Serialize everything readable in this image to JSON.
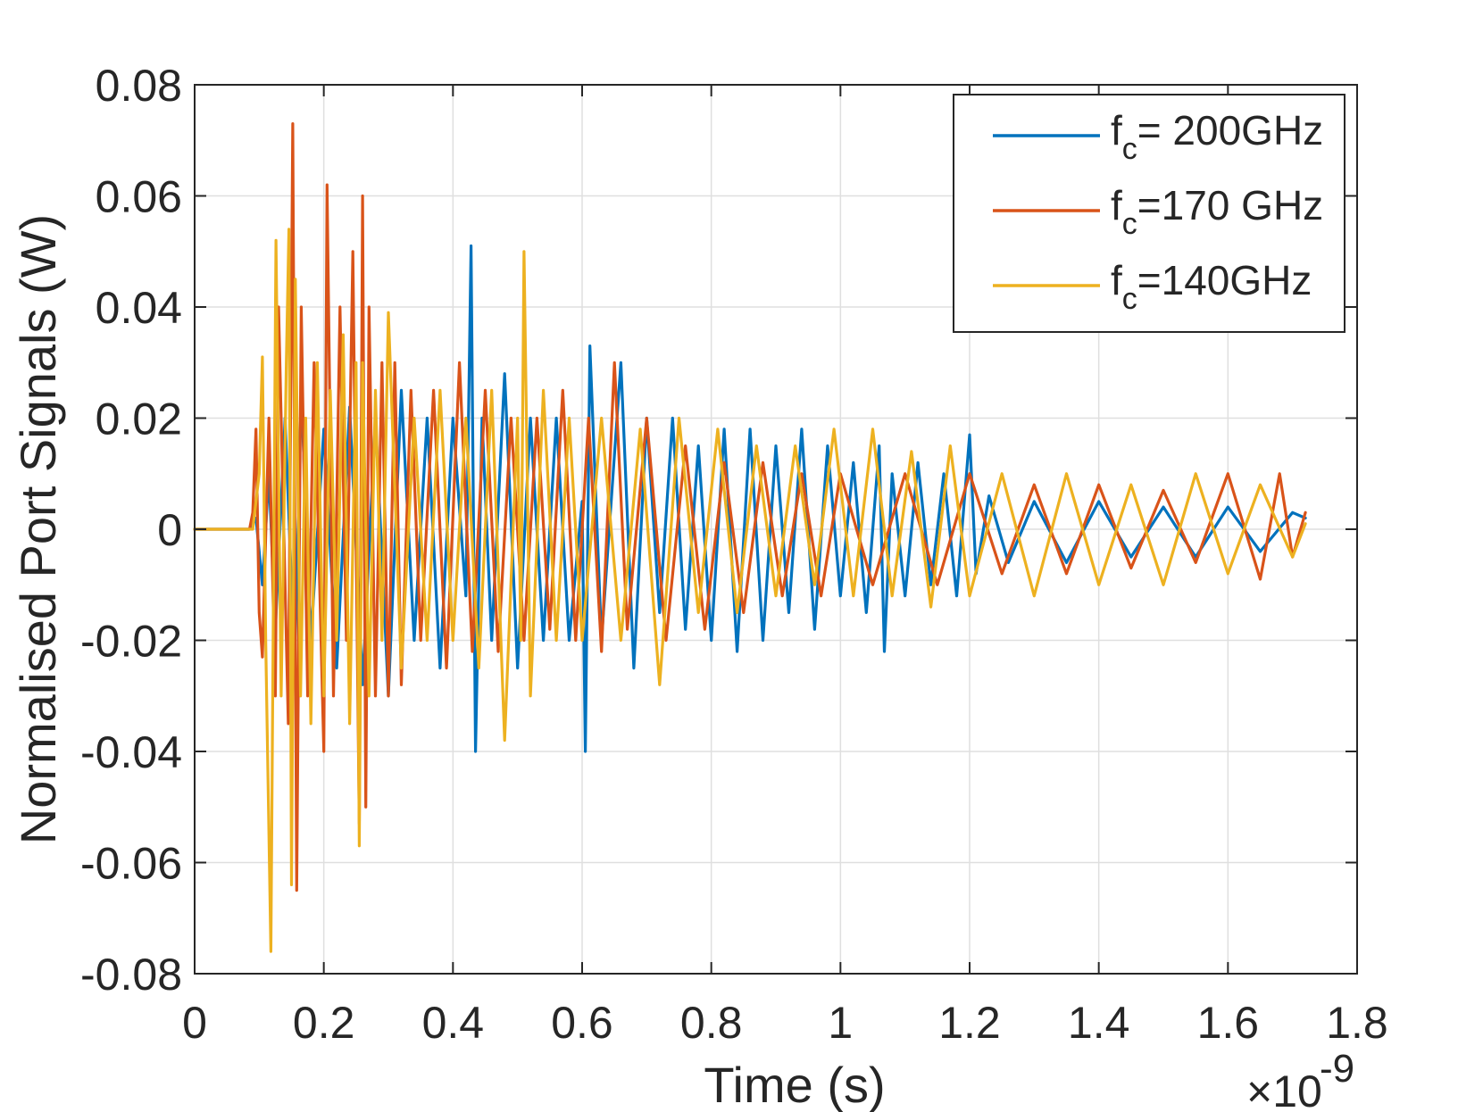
{
  "chart_data": {
    "type": "line",
    "title": "",
    "xlabel": "Time (s)",
    "ylabel": "Normalised Port Signals (W)",
    "x_exponent_label": {
      "base": "×10",
      "exponent": "-9"
    },
    "xlim": [
      0,
      1.8
    ],
    "ylim": [
      -0.08,
      0.08
    ],
    "xticks": [
      0,
      0.2,
      0.4,
      0.6,
      0.8,
      1,
      1.2,
      1.4,
      1.6,
      1.8
    ],
    "xtick_labels": [
      "0",
      "0.2",
      "0.4",
      "0.6",
      "0.8",
      "1",
      "1.2",
      "1.4",
      "1.6",
      "1.8"
    ],
    "yticks": [
      -0.08,
      -0.06,
      -0.04,
      -0.02,
      0,
      0.02,
      0.04,
      0.06,
      0.08
    ],
    "ytick_labels": [
      "-0.08",
      "-0.06",
      "-0.04",
      "-0.02",
      "0",
      "0.02",
      "0.04",
      "0.06",
      "0.08"
    ],
    "grid": true,
    "legend_position": "top-right",
    "x_units_note": "time in units of 1e-9 s",
    "series": [
      {
        "name": "fc= 200GHz",
        "legend": {
          "main": "f",
          "sub": "c",
          "rest": "= 200GHz"
        },
        "color": "#0072BD",
        "x": [
          0,
          0.085,
          0.095,
          0.105,
          0.115,
          0.125,
          0.14,
          0.155,
          0.165,
          0.18,
          0.2,
          0.22,
          0.24,
          0.26,
          0.28,
          0.3,
          0.32,
          0.34,
          0.36,
          0.38,
          0.4,
          0.42,
          0.428,
          0.435,
          0.445,
          0.46,
          0.48,
          0.5,
          0.52,
          0.54,
          0.56,
          0.58,
          0.6,
          0.605,
          0.612,
          0.63,
          0.66,
          0.68,
          0.7,
          0.72,
          0.74,
          0.76,
          0.78,
          0.8,
          0.82,
          0.84,
          0.86,
          0.88,
          0.9,
          0.92,
          0.94,
          0.96,
          0.98,
          1.0,
          1.02,
          1.04,
          1.06,
          1.068,
          1.08,
          1.1,
          1.12,
          1.14,
          1.16,
          1.18,
          1.2,
          1.21,
          1.23,
          1.26,
          1.3,
          1.35,
          1.4,
          1.45,
          1.5,
          1.55,
          1.6,
          1.65,
          1.7,
          1.72
        ],
        "y": [
          0,
          0,
          0.002,
          -0.01,
          0.01,
          -0.018,
          0.02,
          -0.025,
          0.025,
          -0.02,
          0.018,
          -0.025,
          0.022,
          -0.028,
          0.02,
          -0.03,
          0.025,
          -0.02,
          0.02,
          -0.025,
          0.02,
          -0.012,
          0.051,
          -0.04,
          0.02,
          -0.02,
          0.028,
          -0.025,
          0.02,
          -0.02,
          0.02,
          -0.02,
          0.005,
          -0.04,
          0.033,
          -0.02,
          0.03,
          -0.025,
          0.02,
          -0.015,
          0.02,
          -0.018,
          0.015,
          -0.02,
          0.018,
          -0.022,
          0.018,
          -0.02,
          0.015,
          -0.015,
          0.018,
          -0.018,
          0.015,
          -0.012,
          0.012,
          -0.015,
          0.015,
          -0.022,
          0.01,
          -0.012,
          0.012,
          -0.01,
          0.01,
          -0.012,
          0.017,
          -0.008,
          0.006,
          -0.006,
          0.005,
          -0.006,
          0.005,
          -0.005,
          0.004,
          -0.005,
          0.004,
          -0.004,
          0.003,
          0.002
        ]
      },
      {
        "name": "fc=170 GHz",
        "legend": {
          "main": "f",
          "sub": "c",
          "rest": "=170 GHz"
        },
        "color": "#D95319",
        "x": [
          0,
          0.085,
          0.09,
          0.095,
          0.1,
          0.105,
          0.115,
          0.125,
          0.13,
          0.145,
          0.152,
          0.158,
          0.165,
          0.175,
          0.185,
          0.2,
          0.205,
          0.215,
          0.225,
          0.235,
          0.245,
          0.255,
          0.26,
          0.265,
          0.27,
          0.28,
          0.29,
          0.3,
          0.31,
          0.32,
          0.335,
          0.35,
          0.37,
          0.39,
          0.41,
          0.43,
          0.45,
          0.47,
          0.49,
          0.51,
          0.53,
          0.55,
          0.57,
          0.59,
          0.61,
          0.63,
          0.65,
          0.67,
          0.7,
          0.73,
          0.76,
          0.79,
          0.82,
          0.85,
          0.88,
          0.91,
          0.94,
          0.97,
          1.0,
          1.05,
          1.1,
          1.15,
          1.2,
          1.25,
          1.3,
          1.35,
          1.4,
          1.45,
          1.5,
          1.55,
          1.6,
          1.65,
          1.68,
          1.7,
          1.72
        ],
        "y": [
          0,
          0,
          0.003,
          0.018,
          -0.015,
          -0.023,
          0.02,
          -0.03,
          0.04,
          -0.035,
          0.073,
          -0.065,
          0.04,
          -0.03,
          0.03,
          -0.04,
          0.062,
          -0.03,
          0.04,
          -0.02,
          0.05,
          -0.053,
          0.06,
          -0.05,
          0.04,
          -0.03,
          0.03,
          -0.03,
          0.03,
          -0.028,
          0.025,
          -0.02,
          0.025,
          -0.025,
          0.03,
          -0.022,
          0.025,
          -0.022,
          0.02,
          -0.02,
          0.02,
          -0.018,
          0.025,
          -0.02,
          0.02,
          -0.022,
          0.03,
          -0.018,
          0.02,
          -0.02,
          0.015,
          -0.018,
          0.012,
          -0.015,
          0.012,
          -0.012,
          0.01,
          -0.012,
          0.01,
          -0.01,
          0.01,
          -0.01,
          0.01,
          -0.008,
          0.008,
          -0.008,
          0.008,
          -0.007,
          0.007,
          -0.006,
          0.01,
          -0.009,
          0.01,
          -0.005,
          0.003
        ]
      },
      {
        "name": "fc=140GHz",
        "legend": {
          "main": "f",
          "sub": "c",
          "rest": "=140GHz"
        },
        "color": "#EDB120",
        "x": [
          0,
          0.09,
          0.1,
          0.105,
          0.11,
          0.118,
          0.126,
          0.134,
          0.142,
          0.146,
          0.15,
          0.156,
          0.164,
          0.172,
          0.18,
          0.19,
          0.2,
          0.21,
          0.22,
          0.23,
          0.24,
          0.25,
          0.255,
          0.26,
          0.27,
          0.28,
          0.29,
          0.3,
          0.32,
          0.34,
          0.36,
          0.38,
          0.4,
          0.42,
          0.44,
          0.46,
          0.48,
          0.5,
          0.505,
          0.51,
          0.52,
          0.54,
          0.56,
          0.58,
          0.6,
          0.63,
          0.66,
          0.69,
          0.72,
          0.75,
          0.78,
          0.81,
          0.84,
          0.87,
          0.9,
          0.93,
          0.96,
          0.99,
          1.02,
          1.05,
          1.08,
          1.11,
          1.14,
          1.17,
          1.2,
          1.25,
          1.3,
          1.35,
          1.4,
          1.45,
          1.5,
          1.55,
          1.6,
          1.65,
          1.7,
          1.72
        ],
        "y": [
          0,
          0,
          0.01,
          0.031,
          -0.02,
          -0.076,
          0.052,
          -0.03,
          0.03,
          0.054,
          -0.064,
          0.045,
          -0.03,
          0.02,
          -0.035,
          0.03,
          -0.03,
          0.025,
          -0.02,
          0.035,
          -0.035,
          0.03,
          -0.057,
          0.03,
          -0.03,
          0.025,
          -0.02,
          0.039,
          -0.025,
          0.02,
          -0.02,
          0.025,
          -0.02,
          0.02,
          -0.025,
          0.025,
          -0.038,
          0.02,
          -0.02,
          0.05,
          -0.03,
          0.025,
          -0.02,
          0.02,
          -0.02,
          0.02,
          -0.02,
          0.018,
          -0.028,
          0.02,
          -0.015,
          0.018,
          -0.015,
          0.015,
          -0.012,
          0.015,
          -0.01,
          0.018,
          -0.012,
          0.018,
          -0.012,
          0.014,
          -0.014,
          0.015,
          -0.012,
          0.01,
          -0.012,
          0.01,
          -0.01,
          0.008,
          -0.01,
          0.01,
          -0.008,
          0.008,
          -0.005,
          0.001
        ]
      }
    ]
  }
}
